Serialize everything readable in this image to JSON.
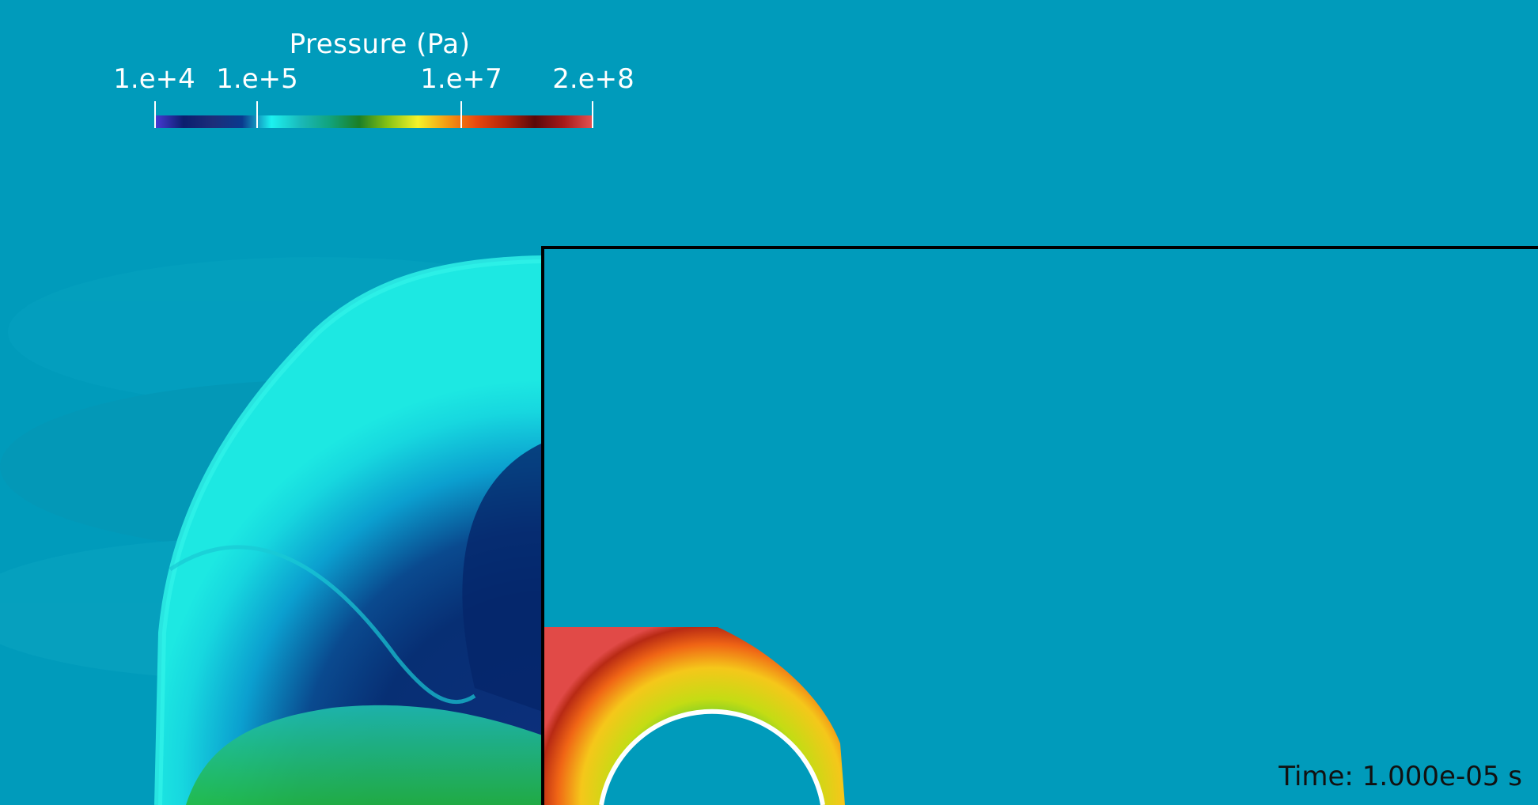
{
  "colorbar": {
    "title": "Pressure (Pa)",
    "tick_labels": [
      "1.e+4",
      "1.e+5",
      "1.e+7",
      "2.e+8"
    ],
    "colormap": [
      "#4a3bd8",
      "#0b1e6e",
      "#1c2d7a",
      "#0a3a8e",
      "#1cf2f0",
      "#1ab9b9",
      "#11a37c",
      "#1b7f25",
      "#8ac413",
      "#f5f32a",
      "#f39a13",
      "#e8480f",
      "#b5240b",
      "#5a0909",
      "#a61a1a",
      "#e75353"
    ]
  },
  "domain": {
    "background_color": "#009bbb",
    "wall_color": "#000000",
    "cylinder_outline_color": "#ffffff"
  },
  "annotation": {
    "time": "Time: 1.000e-05 s"
  }
}
